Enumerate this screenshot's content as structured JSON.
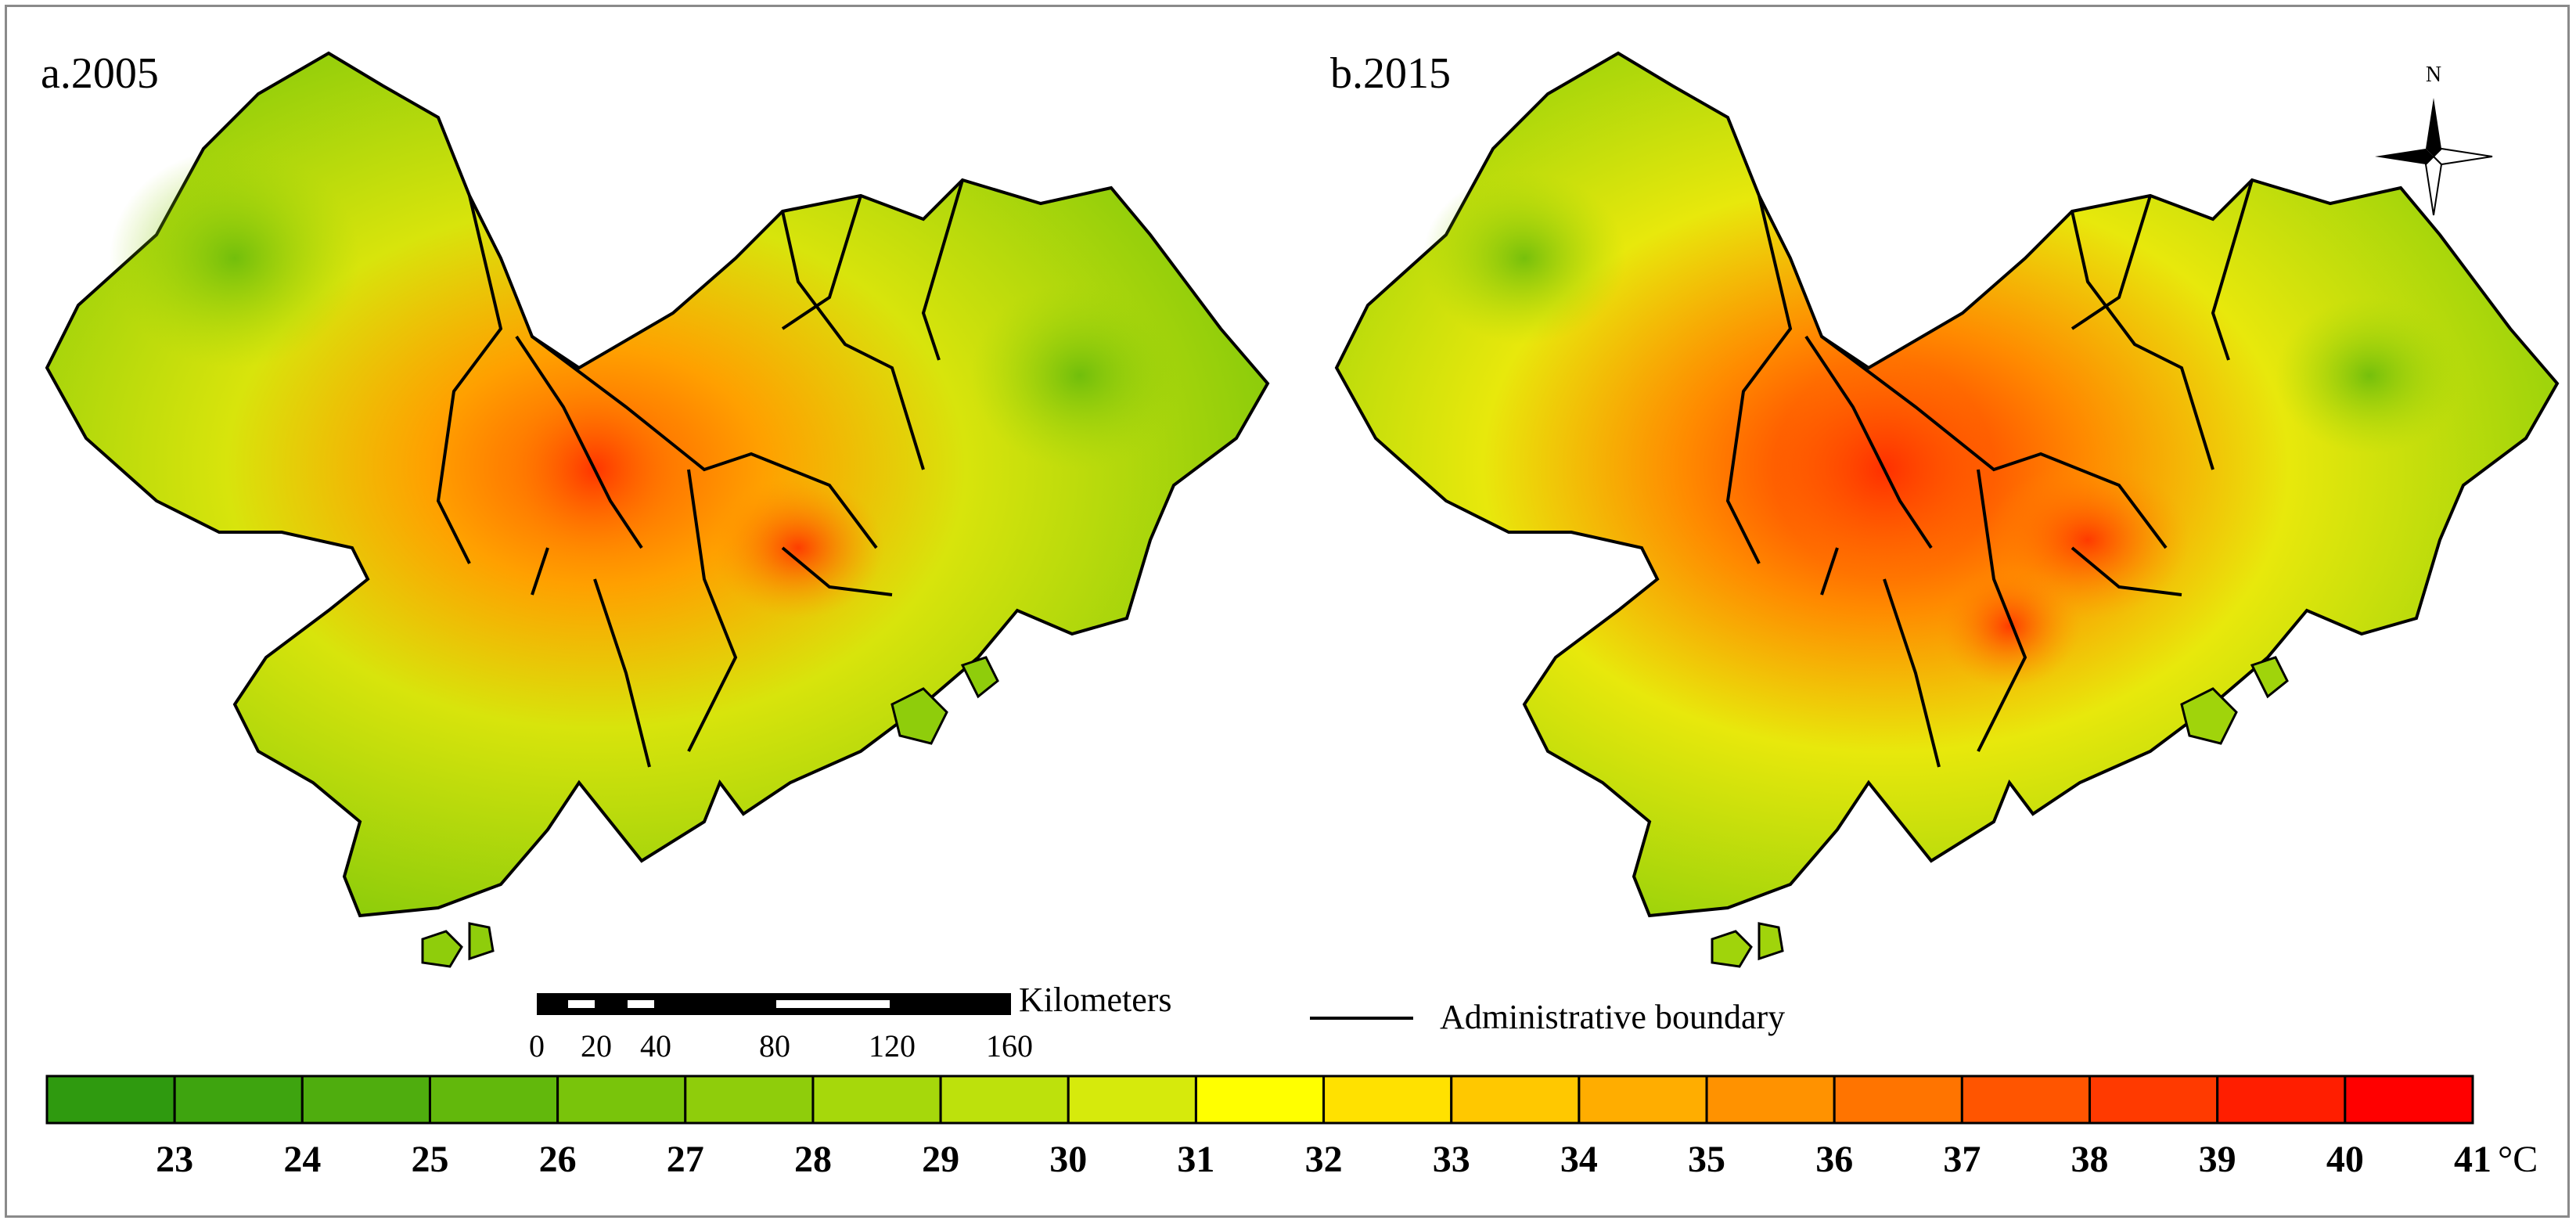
{
  "panels": [
    {
      "label": "a.2005"
    },
    {
      "label": "b.2015"
    }
  ],
  "north_arrow": {
    "label": "N",
    "icon": "north-arrow-icon"
  },
  "scale_bar": {
    "unit_label": "Kilometers",
    "ticks": [
      "0",
      "20",
      "40",
      "80",
      "120",
      "160"
    ]
  },
  "legend": {
    "boundary_label": "Administrative boundary"
  },
  "colorbar": {
    "unit": "°C",
    "tick_labels": [
      "23",
      "24",
      "25",
      "26",
      "27",
      "28",
      "29",
      "30",
      "31",
      "32",
      "33",
      "34",
      "35",
      "36",
      "37",
      "38",
      "39",
      "40",
      "41"
    ],
    "colors": [
      "#2f9a0f",
      "#3ea40f",
      "#4fad0e",
      "#62b80c",
      "#79c40b",
      "#8fcd0b",
      "#a6d80b",
      "#bde10c",
      "#d6ea0c",
      "#ffff00",
      "#ffe100",
      "#ffc800",
      "#ffad00",
      "#ff9200",
      "#ff7400",
      "#ff5500",
      "#ff3a00",
      "#ff1e00",
      "#ff0000"
    ]
  }
}
